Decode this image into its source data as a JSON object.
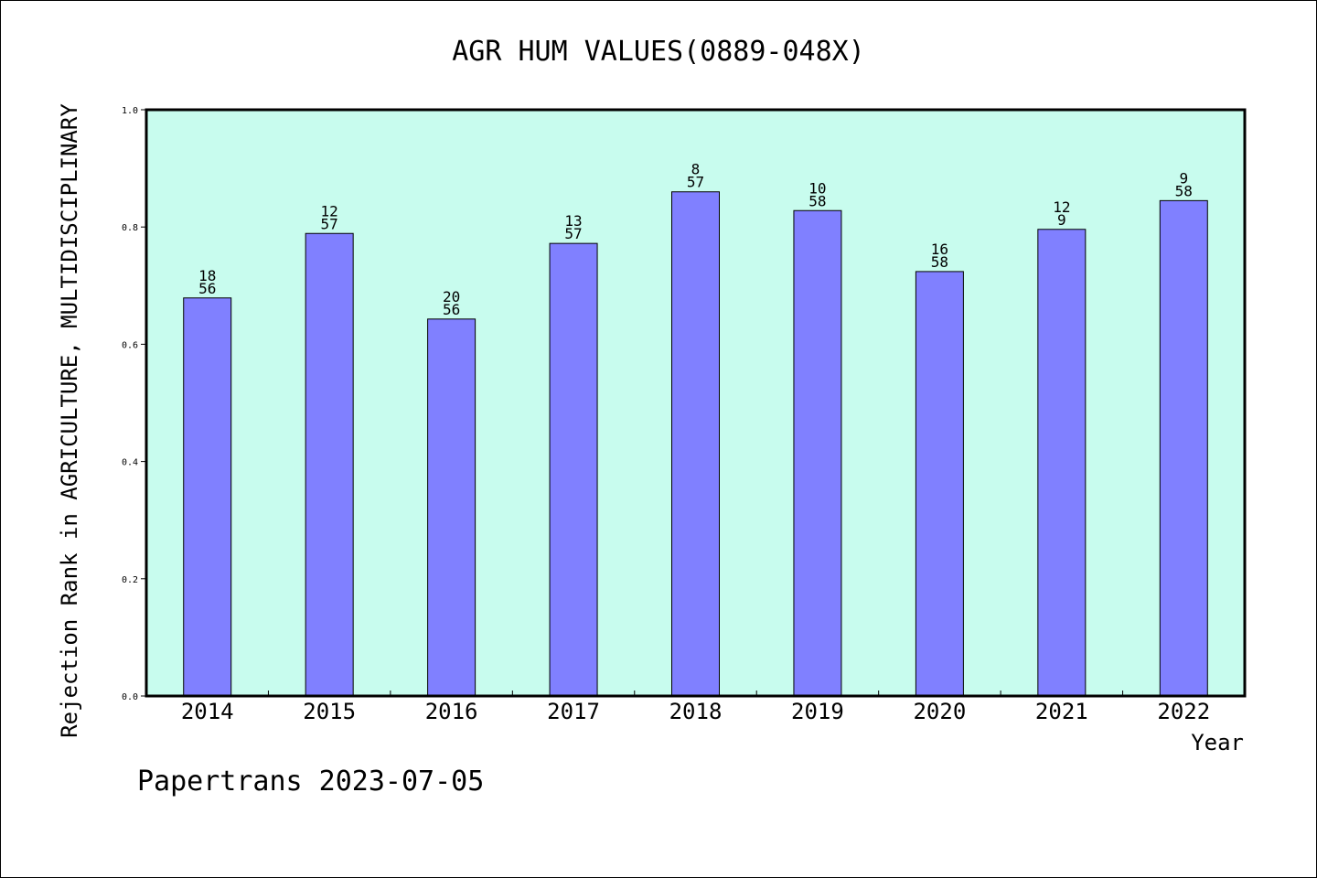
{
  "footer": "Papertrans 2023-07-05",
  "chart_data": {
    "type": "bar",
    "title": "AGR HUM VALUES(0889-048X)",
    "xlabel": "Year",
    "ylabel": "Rejection Rank in AGRICULTURE, MULTIDISCIPLINARY",
    "categories": [
      "2014",
      "2015",
      "2016",
      "2017",
      "2018",
      "2019",
      "2020",
      "2021",
      "2022"
    ],
    "values": [
      0.679,
      0.789,
      0.643,
      0.772,
      0.86,
      0.828,
      0.724,
      0.796,
      0.845
    ],
    "rank": [
      "18",
      "12",
      "20",
      "13",
      "8",
      "10",
      "16",
      "12",
      "9"
    ],
    "total": [
      "56",
      "57",
      "56",
      "57",
      "57",
      "58",
      "58",
      "9",
      "58"
    ],
    "yticks": [
      "0.0",
      "0.2",
      "0.4",
      "0.6",
      "0.8",
      "1.0"
    ],
    "ylim": [
      0,
      1.0
    ],
    "grid": false,
    "colors": {
      "plot_bg": "#c8fcee",
      "bar": "#8080ff",
      "axis": "#000000"
    }
  }
}
